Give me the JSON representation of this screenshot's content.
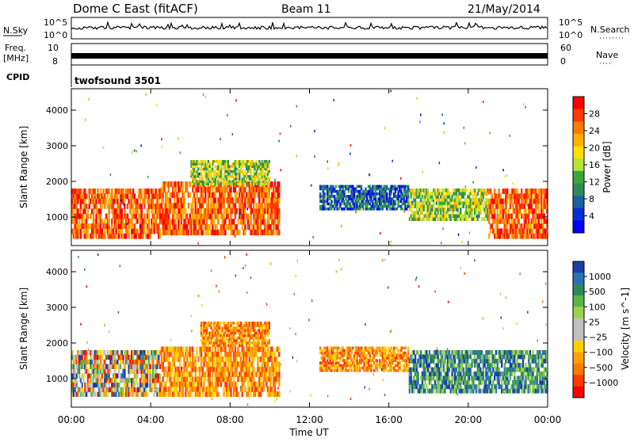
{
  "header": {
    "station": "Dome C East (fitACF)",
    "beam": "Beam 11",
    "date": "21/May/2014"
  },
  "summary": {
    "nsky_label": "N.Sky",
    "nsky_top": "10^5",
    "nsky_bottom": "10^0",
    "nsearch_label": "N.Search",
    "nsearch_top": "10^5",
    "nsearch_bottom": "10^0",
    "freq_label": "Freq.",
    "freq_unit": "[MHz]",
    "freq_top": "10",
    "freq_bottom": "8",
    "nave_label": "Nave",
    "nave_top": "60",
    "nave_bottom": "0",
    "cpid_label": "CPID",
    "cpid_text": "twofsound 3501"
  },
  "chart_data": [
    {
      "type": "heatmap",
      "panel": "power",
      "ylabel": "Slant Range [km]",
      "xlabel": "Time UT",
      "x_ticks": [
        "00:00",
        "04:00",
        "08:00",
        "12:00",
        "16:00",
        "20:00",
        "00:00"
      ],
      "y_ticks": [
        1000,
        2000,
        3000,
        4000
      ],
      "ylim": [
        200,
        4600
      ],
      "xlim_hours": [
        0,
        24
      ],
      "colorbar_label": "Power [dB]",
      "colorbar_ticks": [
        "28",
        "24",
        "20",
        "16",
        "12",
        "8",
        "4"
      ],
      "colorbar_colors": [
        "#ff0000",
        "#ff3a00",
        "#ff7a00",
        "#ffb000",
        "#ffe000",
        "#b6e23a",
        "#3aa63a",
        "#2e8b57",
        "#1f5fa0",
        "#0a2fd0",
        "#0000ff"
      ],
      "echo_regions": [
        {
          "t0": 0.0,
          "t1": 4.5,
          "r0": 400,
          "r1": 1800,
          "level": "high"
        },
        {
          "t0": 4.5,
          "t1": 10.5,
          "r0": 500,
          "r1": 2000,
          "level": "high"
        },
        {
          "t0": 6.0,
          "t1": 10.0,
          "r0": 1900,
          "r1": 2600,
          "level": "mid"
        },
        {
          "t0": 12.5,
          "t1": 17.0,
          "r0": 1200,
          "r1": 1900,
          "level": "low"
        },
        {
          "t0": 17.0,
          "t1": 21.0,
          "r0": 900,
          "r1": 1800,
          "level": "mid"
        },
        {
          "t0": 21.0,
          "t1": 24.0,
          "r0": 400,
          "r1": 1800,
          "level": "high"
        }
      ]
    },
    {
      "type": "heatmap",
      "panel": "velocity",
      "ylabel": "Slant Range [km]",
      "xlabel": "Time UT",
      "x_ticks": [
        "00:00",
        "04:00",
        "08:00",
        "12:00",
        "16:00",
        "20:00",
        "00:00"
      ],
      "y_ticks": [
        1000,
        2000,
        3000,
        4000
      ],
      "ylim": [
        200,
        4600
      ],
      "xlim_hours": [
        0,
        24
      ],
      "colorbar_label": "Velocity [m s^-1]",
      "colorbar_ticks": [
        "1000",
        "500",
        "100",
        "25",
        "−25",
        "−100",
        "−500",
        "−1000"
      ],
      "colorbar_colors": [
        "#1a3faa",
        "#2d6fb5",
        "#2e8b57",
        "#5ab44a",
        "#9ad24a",
        "#c0c0c0",
        "#c0c0c0",
        "#ffd000",
        "#ffa000",
        "#ff7a00",
        "#ff3a00",
        "#ff0000"
      ],
      "echo_regions": [
        {
          "t0": 0.0,
          "t1": 4.5,
          "r0": 500,
          "r1": 1800,
          "level": "mixed"
        },
        {
          "t0": 4.5,
          "t1": 10.5,
          "r0": 500,
          "r1": 1900,
          "level": "negative"
        },
        {
          "t0": 6.5,
          "t1": 10.0,
          "r0": 1900,
          "r1": 2600,
          "level": "negative"
        },
        {
          "t0": 12.5,
          "t1": 17.0,
          "r0": 1200,
          "r1": 1900,
          "level": "negative"
        },
        {
          "t0": 17.0,
          "t1": 24.0,
          "r0": 600,
          "r1": 1800,
          "level": "positive"
        }
      ]
    }
  ]
}
